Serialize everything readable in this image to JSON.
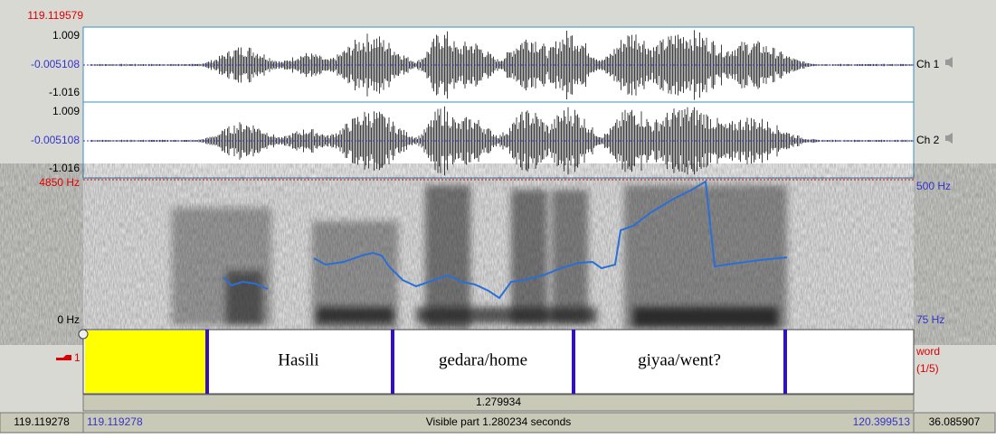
{
  "ruler": {
    "cursor_time": "119.119579"
  },
  "channels": [
    {
      "name": "Ch 1",
      "max": "1.009",
      "mid": "-0.005108",
      "min": "-1.016"
    },
    {
      "name": "Ch 2",
      "max": "1.009",
      "mid": "-0.005108",
      "min": "-1.016"
    }
  ],
  "spectrogram": {
    "freq_max": "4850 Hz",
    "freq_min": "0 Hz",
    "pitch_max": "500 Hz",
    "pitch_min": "75 Hz"
  },
  "tier": {
    "number": "1",
    "name": "word",
    "count": "(1/5)",
    "intervals": [
      "Hasili",
      "gedara/home",
      "giyaa/went?"
    ]
  },
  "selection_duration": "1.279934",
  "status": {
    "left_total": "119.119278",
    "visible_start": "119.119278",
    "visible_label": "Visible part 1.280234 seconds",
    "visible_end": "120.399513",
    "right_total": "36.085907"
  }
}
